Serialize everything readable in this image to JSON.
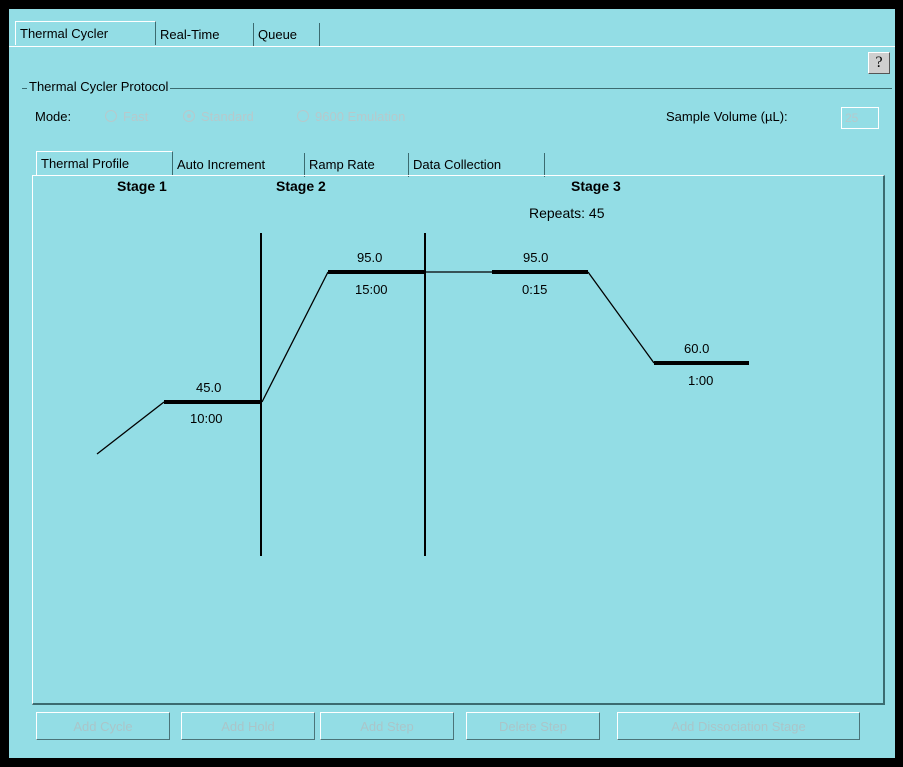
{
  "tabs": [
    "Thermal Cycler",
    "Real-Time",
    "Queue"
  ],
  "help_label": "?",
  "protocol": {
    "title": "Thermal Cycler Protocol",
    "mode_label": "Mode:",
    "modes": [
      "Fast",
      "Standard",
      "9600 Emulation"
    ],
    "selected_mode": "Standard",
    "sample_volume_label": "Sample Volume (µL):",
    "sample_volume_value": "25"
  },
  "subtabs": [
    "Thermal Profile",
    "Auto Increment",
    "Ramp Rate",
    "Data Collection"
  ],
  "profile": {
    "stage1": "Stage 1",
    "stage2": "Stage 2",
    "stage3": "Stage 3",
    "repeats": "Repeats: 45",
    "steps": [
      {
        "temp": "45.0",
        "time": "10:00"
      },
      {
        "temp": "95.0",
        "time": "15:00"
      },
      {
        "temp": "95.0",
        "time": "0:15"
      },
      {
        "temp": "60.0",
        "time": "1:00"
      }
    ]
  },
  "buttons": [
    "Add Cycle",
    "Add Hold",
    "Add Step",
    "Delete Step",
    "Add Dissociation Stage"
  ]
}
